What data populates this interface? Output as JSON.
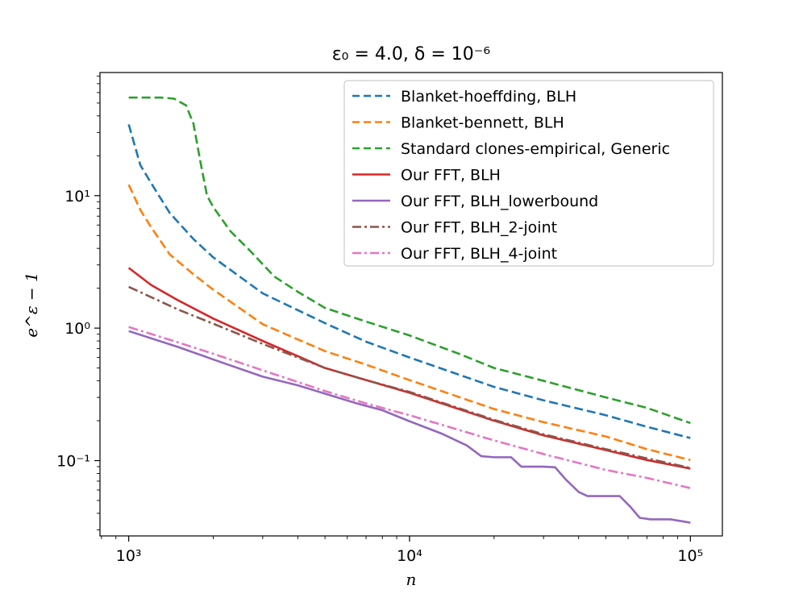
{
  "chart_data": {
    "type": "line",
    "title": "ε₀ = 4.0, δ = 10⁻⁶",
    "xlabel": "n",
    "ylabel": "e^ε − 1",
    "xscale": "log",
    "yscale": "log",
    "xlim": [
      790,
      130000
    ],
    "ylim": [
      0.027,
      85
    ],
    "xticks": [
      {
        "value": 1000,
        "label": "10³"
      },
      {
        "value": 10000,
        "label": "10⁴"
      },
      {
        "value": 100000,
        "label": "10⁵"
      }
    ],
    "yticks": [
      {
        "value": 0.1,
        "label": "10⁻¹"
      },
      {
        "value": 1,
        "label": "10⁰"
      },
      {
        "value": 10,
        "label": "10¹"
      }
    ],
    "grid": false,
    "legend_position": "top-right",
    "series": [
      {
        "name": "Blanket-hoeffding, BLH",
        "color": "#1f77b4",
        "dash": "dashed",
        "x": [
          1000,
          1100,
          1200,
          1400,
          1700,
          2000,
          3000,
          5000,
          7000,
          10000,
          20000,
          30000,
          50000,
          70000,
          100000
        ],
        "y": [
          34.5,
          17,
          12.5,
          7.4,
          4.7,
          3.42,
          1.83,
          1.09,
          0.79,
          0.6,
          0.36,
          0.285,
          0.22,
          0.18,
          0.148
        ]
      },
      {
        "name": "Blanket-bennett, BLH",
        "color": "#ff7f0e",
        "dash": "dashed",
        "x": [
          1000,
          1100,
          1200,
          1400,
          1700,
          2000,
          3000,
          5000,
          7000,
          10000,
          20000,
          30000,
          50000,
          70000,
          100000
        ],
        "y": [
          12.1,
          7.8,
          5.8,
          3.6,
          2.55,
          1.95,
          1.07,
          0.67,
          0.53,
          0.405,
          0.245,
          0.195,
          0.152,
          0.122,
          0.101
        ]
      },
      {
        "name": "Standard clones-empirical, Generic",
        "color": "#2ca02c",
        "dash": "dashed",
        "x": [
          1000,
          1100,
          1300,
          1450,
          1600,
          1700,
          1800,
          1900,
          2000,
          2300,
          2700,
          3300,
          4000,
          5000,
          7000,
          10000,
          15000,
          20000,
          30000,
          50000,
          70000,
          100000
        ],
        "y": [
          55,
          55,
          55,
          54,
          48,
          35,
          18,
          10,
          8.2,
          5.4,
          3.85,
          2.45,
          1.88,
          1.42,
          1.12,
          0.88,
          0.64,
          0.5,
          0.4,
          0.3,
          0.25,
          0.192
        ]
      },
      {
        "name": "Our FFT, BLH",
        "color": "#d62728",
        "dash": "solid",
        "x": [
          1000,
          1200,
          1500,
          2000,
          3000,
          5000,
          7000,
          10000,
          20000,
          30000,
          50000,
          70000,
          100000
        ],
        "y": [
          2.85,
          2.12,
          1.62,
          1.18,
          0.8,
          0.5,
          0.405,
          0.325,
          0.2,
          0.155,
          0.12,
          0.101,
          0.087
        ]
      },
      {
        "name": "Our FFT, BLH_lowerbound",
        "color": "#9467bd",
        "dash": "solid",
        "x": [
          1000,
          1500,
          2000,
          3000,
          4000,
          5000,
          6500,
          8000,
          10000,
          13000,
          16000,
          18000,
          20000,
          23000,
          25000,
          30000,
          33000,
          36000,
          40000,
          43000,
          48000,
          56000,
          61000,
          66000,
          72000,
          85000,
          100000
        ],
        "y": [
          0.95,
          0.72,
          0.58,
          0.43,
          0.37,
          0.32,
          0.27,
          0.24,
          0.198,
          0.16,
          0.13,
          0.108,
          0.106,
          0.106,
          0.09,
          0.09,
          0.089,
          0.072,
          0.058,
          0.054,
          0.054,
          0.054,
          0.045,
          0.037,
          0.036,
          0.036,
          0.034
        ]
      },
      {
        "name": "Our FFT, BLH_2-joint",
        "color": "#8c564b",
        "dash": "dashdot",
        "x": [
          1000,
          1500,
          2000,
          3000,
          5000,
          7000,
          10000,
          20000,
          30000,
          50000,
          70000,
          100000
        ],
        "y": [
          2.05,
          1.38,
          1.08,
          0.76,
          0.5,
          0.405,
          0.33,
          0.203,
          0.158,
          0.122,
          0.104,
          0.088
        ]
      },
      {
        "name": "Our FFT, BLH_4-joint",
        "color": "#e377c2",
        "dash": "dashdot",
        "x": [
          1000,
          1500,
          2000,
          3000,
          5000,
          7000,
          10000,
          20000,
          30000,
          50000,
          70000,
          100000
        ],
        "y": [
          1.02,
          0.78,
          0.64,
          0.48,
          0.335,
          0.27,
          0.22,
          0.142,
          0.112,
          0.085,
          0.074,
          0.062
        ]
      }
    ]
  }
}
